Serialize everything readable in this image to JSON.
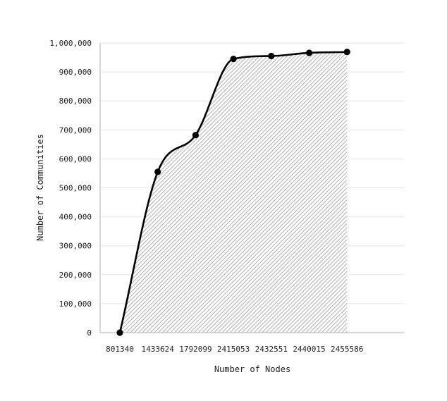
{
  "chart_data": {
    "type": "area",
    "title": "",
    "xlabel": "Number of Nodes",
    "ylabel": "Number of Communities",
    "categories": [
      "801340",
      "1433624",
      "1792099",
      "2415053",
      "2432551",
      "2440015",
      "2455586"
    ],
    "series": [
      {
        "values": [
          0,
          555000,
          682000,
          945000,
          955000,
          966000,
          969000
        ]
      }
    ],
    "ylim": [
      0,
      1000000
    ],
    "yticks": [
      0,
      100000,
      200000,
      300000,
      400000,
      500000,
      600000,
      700000,
      800000,
      900000,
      1000000
    ],
    "ytick_labels": [
      "0",
      "100,000",
      "200,000",
      "300,000",
      "400,000",
      "500,000",
      "600,000",
      "700,000",
      "800,000",
      "900,000",
      "1,000,000"
    ],
    "grid": true,
    "legend": "none",
    "colors": {
      "line": "#000000",
      "hatch": "#9a9a9a",
      "grid": "#e6e6e6",
      "axis": "#c8c8c8"
    }
  }
}
